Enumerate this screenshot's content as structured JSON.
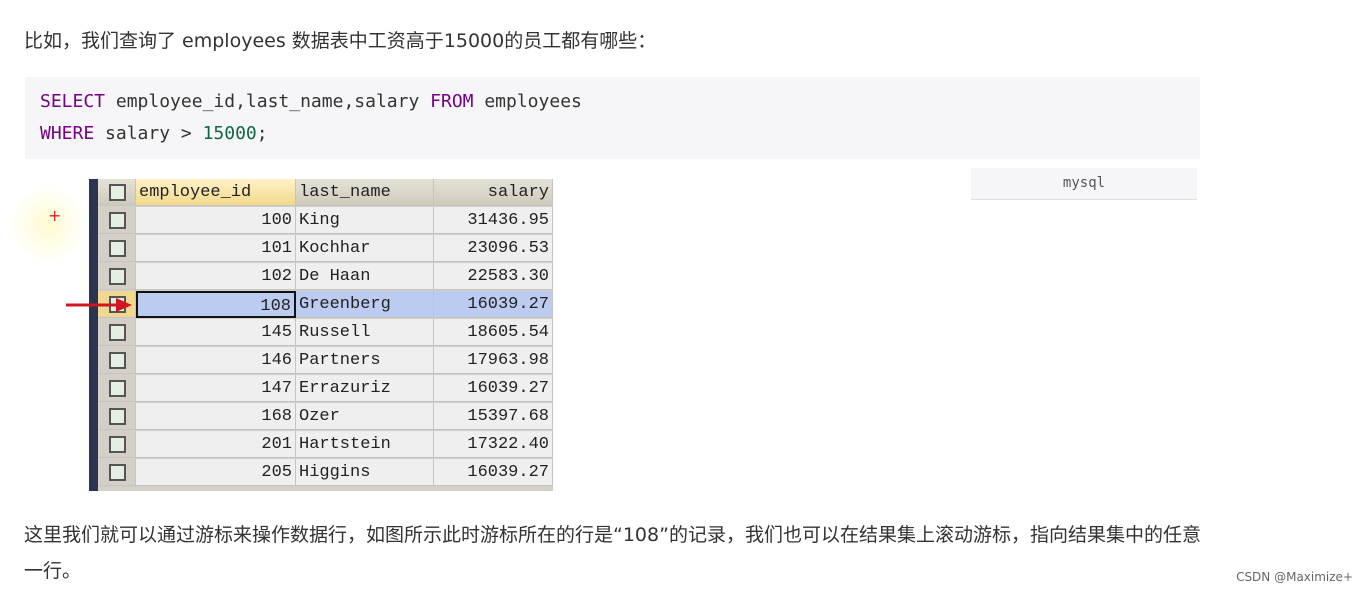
{
  "intro": "比如，我们查询了 employees 数据表中工资高于15000的员工都有哪些：",
  "code": {
    "line1": {
      "kw1": "SELECT",
      "cols": " employee_id,last_name,salary ",
      "kw2": "FROM",
      "tbl": " employees"
    },
    "line2": {
      "kw": "WHERE",
      "cond": " salary > ",
      "num": "15000",
      "end": ";"
    },
    "language": "mysql"
  },
  "table": {
    "headers": [
      "employee_id",
      "last_name",
      "salary"
    ],
    "selected_row": 3,
    "rows": [
      [
        "100",
        "King",
        "31436.95"
      ],
      [
        "101",
        "Kochhar",
        "23096.53"
      ],
      [
        "102",
        "De Haan",
        "22583.30"
      ],
      [
        "108",
        "Greenberg",
        "16039.27"
      ],
      [
        "145",
        "Russell",
        "18605.54"
      ],
      [
        "146",
        "Partners",
        "17963.98"
      ],
      [
        "147",
        "Errazuriz",
        "16039.27"
      ],
      [
        "168",
        "Ozer",
        "15397.68"
      ],
      [
        "201",
        "Hartstein",
        "17322.40"
      ],
      [
        "205",
        "Higgins",
        "16039.27"
      ]
    ]
  },
  "outro": "这里我们就可以通过游标来操作数据行，如图所示此时游标所在的行是“108”的记录，我们也可以在结果集上滚动游标，指向结果集中的任意一行。",
  "watermark": "CSDN @Maximize+",
  "colors": {
    "keyword": "#770088",
    "number": "#116644",
    "selected": "#bccbf0",
    "arrow": "#d0161e"
  }
}
